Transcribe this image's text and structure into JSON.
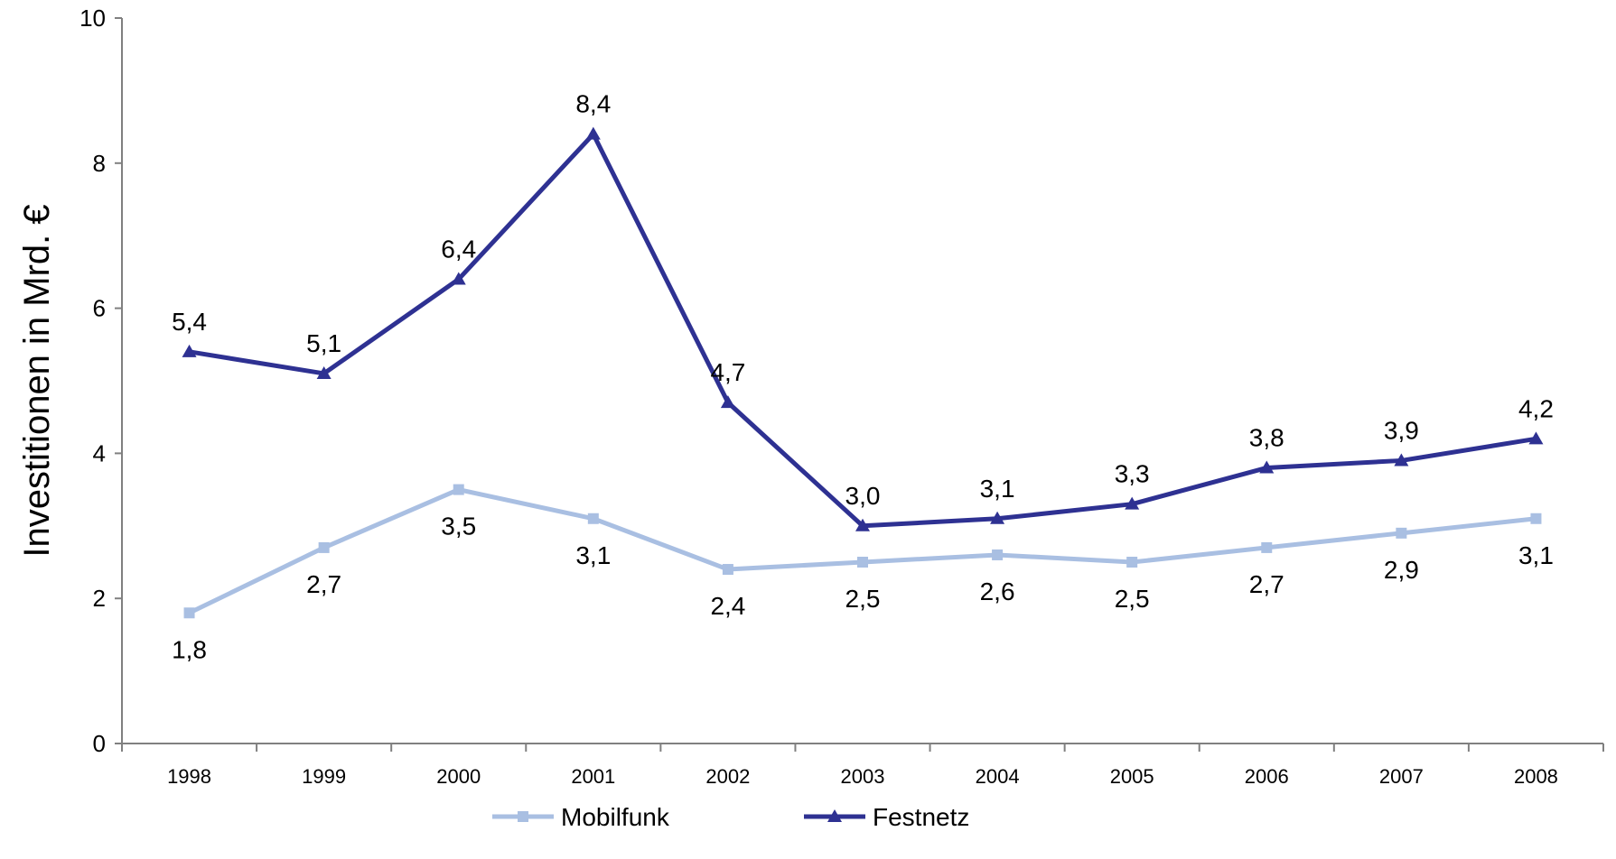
{
  "chart_data": {
    "type": "line",
    "title": "",
    "xlabel": "",
    "ylabel": "Investitionen in Mrd. €",
    "categories": [
      "1998",
      "1999",
      "2000",
      "2001",
      "2002",
      "2003",
      "2004",
      "2005",
      "2006",
      "2007",
      "2008"
    ],
    "ylim": [
      0,
      10
    ],
    "yticks": [
      "0",
      "2",
      "4",
      "6",
      "8",
      "10"
    ],
    "grid": false,
    "legend_position": "bottom",
    "series": [
      {
        "name": "Mobilfunk",
        "color": "#a9bfe2",
        "marker": "square",
        "values": [
          1.8,
          2.7,
          3.5,
          3.1,
          2.4,
          2.5,
          2.6,
          2.5,
          2.7,
          2.9,
          3.1
        ],
        "labels": [
          "1,8",
          "2,7",
          "3,5",
          "3,1",
          "2,4",
          "2,5",
          "2,6",
          "2,5",
          "2,7",
          "2,9",
          "3,1"
        ],
        "label_position": "below"
      },
      {
        "name": "Festnetz",
        "color": "#2e3192",
        "marker": "triangle",
        "values": [
          5.4,
          5.1,
          6.4,
          8.4,
          4.7,
          3.0,
          3.1,
          3.3,
          3.8,
          3.9,
          4.2
        ],
        "labels": [
          "5,4",
          "5,1",
          "6,4",
          "8,4",
          "4,7",
          "3,0",
          "3,1",
          "3,3",
          "3,8",
          "3,9",
          "4,2"
        ],
        "label_position": "above"
      }
    ]
  }
}
